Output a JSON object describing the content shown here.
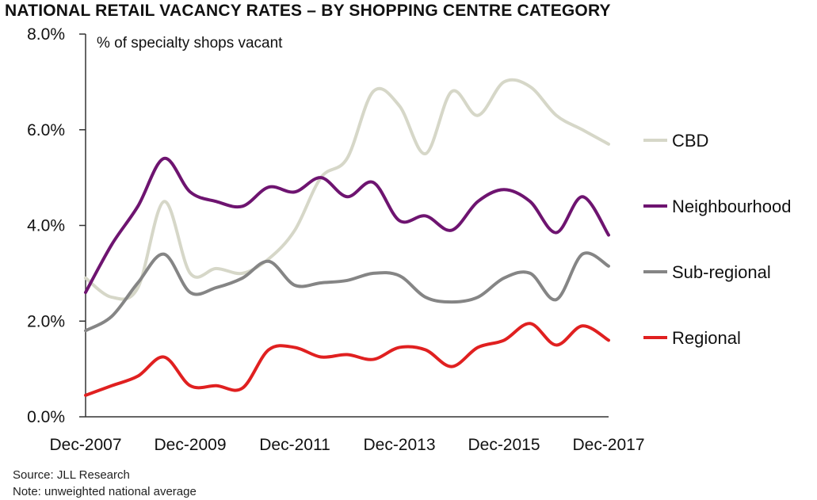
{
  "chart_data": {
    "type": "line",
    "title": "NATIONAL RETAIL VACANCY RATES – BY SHOPPING CENTRE CATEGORY",
    "ylabel": "% of specialty shops vacant",
    "xlabel": "",
    "ylim": [
      0,
      8
    ],
    "xlim": [
      2007.92,
      2017.92
    ],
    "yticks": [
      0,
      2,
      4,
      6,
      8
    ],
    "ytick_labels": [
      "0.0%",
      "2.0%",
      "4.0%",
      "6.0%",
      "8.0%"
    ],
    "xticks": [
      2007.92,
      2009.92,
      2011.92,
      2013.92,
      2015.92,
      2017.92
    ],
    "xtick_labels": [
      "Dec-2007",
      "Dec-2009",
      "Dec-2011",
      "Dec-2013",
      "Dec-2015",
      "Dec-2017"
    ],
    "grid": false,
    "legend_position": "right",
    "series": [
      {
        "name": "CBD",
        "color": "#d6d7c8",
        "x": [
          2007.92,
          2008.42,
          2008.92,
          2009.42,
          2009.92,
          2010.42,
          2010.92,
          2011.42,
          2011.92,
          2012.42,
          2012.92,
          2013.42,
          2013.92,
          2014.42,
          2014.92,
          2015.42,
          2015.92,
          2016.42,
          2016.92,
          2017.42,
          2017.92
        ],
        "values": [
          2.9,
          2.5,
          2.7,
          4.5,
          3.0,
          3.1,
          3.0,
          3.3,
          3.9,
          5.0,
          5.4,
          6.8,
          6.5,
          5.5,
          6.8,
          6.3,
          7.0,
          6.9,
          6.3,
          6.0,
          5.7
        ]
      },
      {
        "name": "Neighbourhood",
        "color": "#6e1470",
        "x": [
          2007.92,
          2008.42,
          2008.92,
          2009.42,
          2009.92,
          2010.42,
          2010.92,
          2011.42,
          2011.92,
          2012.42,
          2012.92,
          2013.42,
          2013.92,
          2014.42,
          2014.92,
          2015.42,
          2015.92,
          2016.42,
          2016.92,
          2017.42,
          2017.92
        ],
        "values": [
          2.6,
          3.6,
          4.4,
          5.4,
          4.7,
          4.5,
          4.4,
          4.8,
          4.7,
          5.0,
          4.6,
          4.9,
          4.1,
          4.2,
          3.9,
          4.5,
          4.75,
          4.5,
          3.85,
          4.6,
          3.8
        ]
      },
      {
        "name": "Sub-regional",
        "color": "#858585",
        "x": [
          2007.92,
          2008.42,
          2008.92,
          2009.42,
          2009.92,
          2010.42,
          2010.92,
          2011.42,
          2011.92,
          2012.42,
          2012.92,
          2013.42,
          2013.92,
          2014.42,
          2014.92,
          2015.42,
          2015.92,
          2016.42,
          2016.92,
          2017.42,
          2017.92
        ],
        "values": [
          1.8,
          2.1,
          2.8,
          3.4,
          2.6,
          2.7,
          2.9,
          3.25,
          2.75,
          2.8,
          2.85,
          3.0,
          2.95,
          2.5,
          2.4,
          2.5,
          2.9,
          3.0,
          2.45,
          3.4,
          3.15
        ]
      },
      {
        "name": "Regional",
        "color": "#e02020",
        "x": [
          2007.92,
          2008.42,
          2008.92,
          2009.42,
          2009.92,
          2010.42,
          2010.92,
          2011.42,
          2011.92,
          2012.42,
          2012.92,
          2013.42,
          2013.92,
          2014.42,
          2014.92,
          2015.42,
          2015.92,
          2016.42,
          2016.92,
          2017.42,
          2017.92
        ],
        "values": [
          0.45,
          0.65,
          0.85,
          1.25,
          0.65,
          0.65,
          0.6,
          1.4,
          1.45,
          1.25,
          1.3,
          1.2,
          1.45,
          1.4,
          1.05,
          1.45,
          1.6,
          1.95,
          1.5,
          1.9,
          1.6
        ]
      }
    ]
  },
  "footnotes": {
    "source": "Source: JLL Research",
    "note": "Note: unweighted national average"
  }
}
